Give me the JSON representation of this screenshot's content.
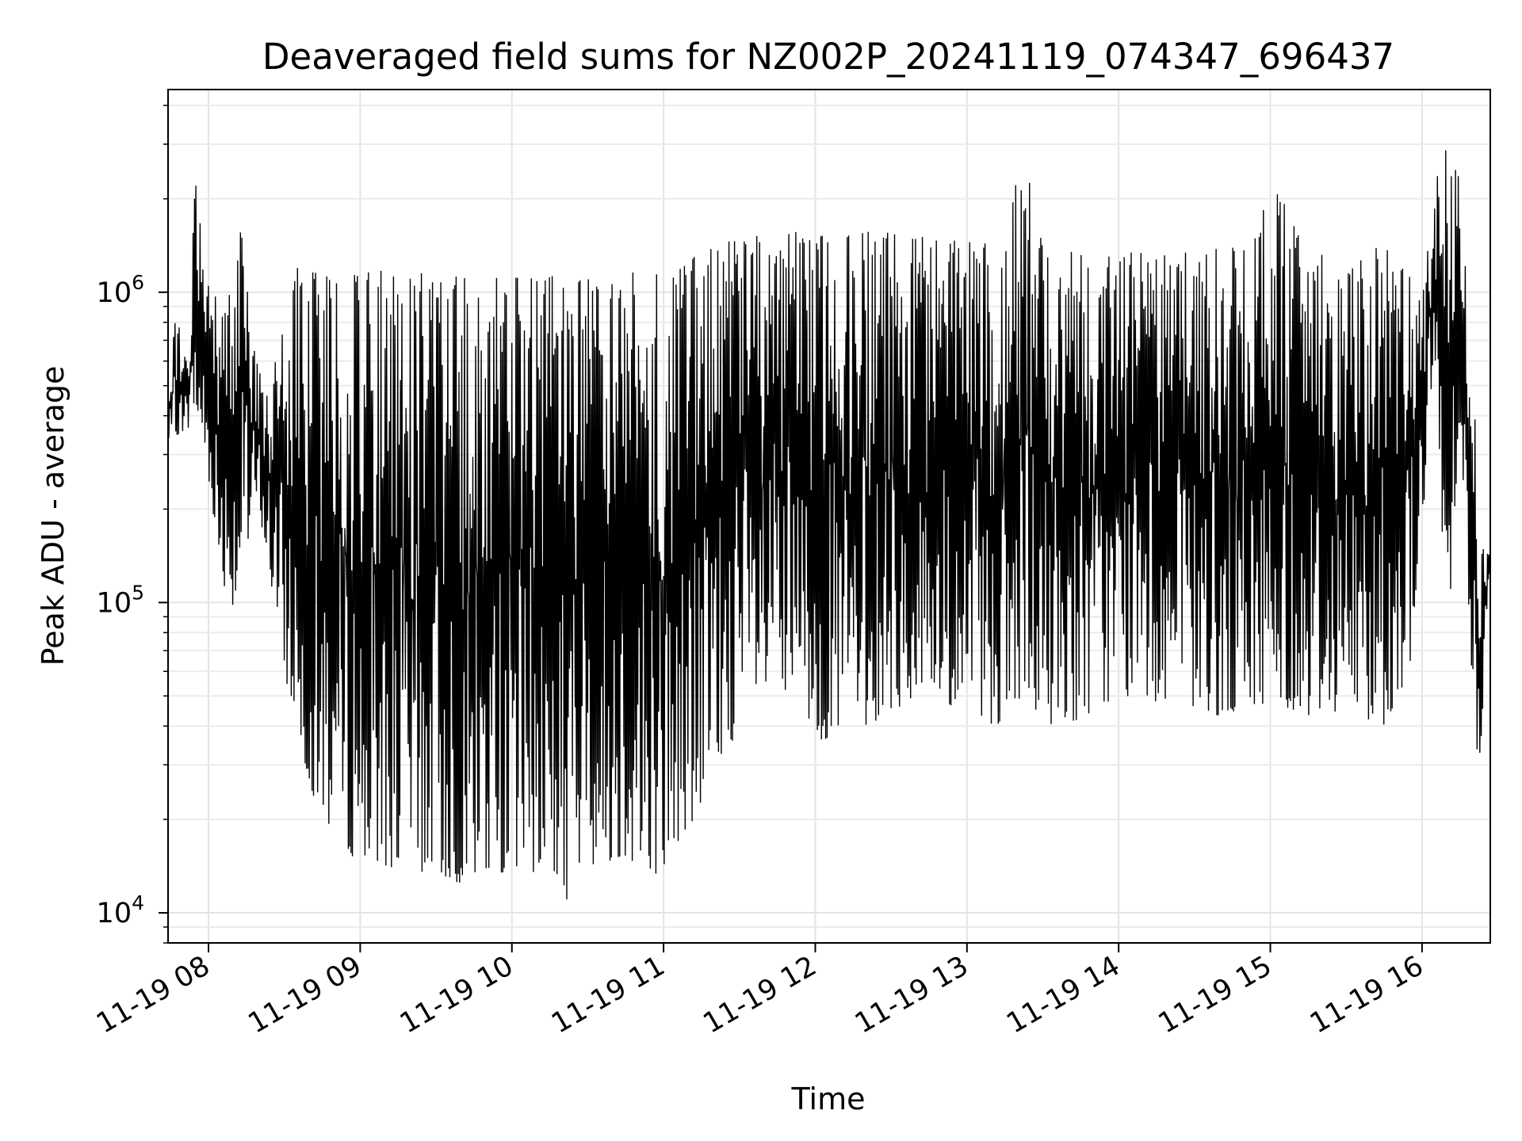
{
  "chart_data": {
    "type": "line",
    "title": "Deaveraged field sums for NZ002P_20241119_074347_696437",
    "xlabel": "Time",
    "ylabel": "Peak ADU - average",
    "y_scale": "log",
    "xlim": [
      "11-19 07:44",
      "11-19 16:27"
    ],
    "ylim": [
      8000,
      4500000
    ],
    "x_ticks": [
      "11-19 08",
      "11-19 09",
      "11-19 10",
      "11-19 11",
      "11-19 12",
      "11-19 13",
      "11-19 14",
      "11-19 15",
      "11-19 16"
    ],
    "y_ticks": [
      {
        "value": 10000,
        "base": "10",
        "exp": "4"
      },
      {
        "value": 100000,
        "base": "10",
        "exp": "5"
      },
      {
        "value": 1000000,
        "base": "10",
        "exp": "6"
      }
    ],
    "grid": true,
    "line_color": "#000000",
    "series": [
      {
        "name": "",
        "description_envelope": "upper and lower envelope of a dense oscillating line, values in ADU",
        "upper": [
          [
            "07:44",
            420000
          ],
          [
            "07:47",
            880000
          ],
          [
            "07:52",
            560000
          ],
          [
            "07:55",
            2800000
          ],
          [
            "07:58",
            1250000
          ],
          [
            "08:05",
            900000
          ],
          [
            "08:13",
            1600000
          ],
          [
            "08:22",
            450000
          ],
          [
            "08:31",
            850000
          ],
          [
            "08:35",
            1200000
          ],
          [
            "08:45",
            1180000
          ],
          [
            "09:00",
            1150000
          ],
          [
            "09:15",
            1200000
          ],
          [
            "09:30",
            1150000
          ],
          [
            "09:45",
            1100000
          ],
          [
            "10:00",
            1120000
          ],
          [
            "10:15",
            1130000
          ],
          [
            "10:30",
            1100000
          ],
          [
            "10:45",
            1150000
          ],
          [
            "11:00",
            1200000
          ],
          [
            "11:15",
            1350000
          ],
          [
            "11:30",
            1500000
          ],
          [
            "11:45",
            1600000
          ],
          [
            "12:00",
            1550000
          ],
          [
            "12:15",
            1600000
          ],
          [
            "12:30",
            1550000
          ],
          [
            "12:45",
            1500000
          ],
          [
            "13:00",
            1450000
          ],
          [
            "13:15",
            1450000
          ],
          [
            "13:22",
            2900000
          ],
          [
            "13:30",
            1400000
          ],
          [
            "13:45",
            1350000
          ],
          [
            "14:00",
            1350000
          ],
          [
            "14:15",
            1350000
          ],
          [
            "14:30",
            1350000
          ],
          [
            "14:45",
            1400000
          ],
          [
            "15:03",
            2100000
          ],
          [
            "15:15",
            1400000
          ],
          [
            "15:30",
            1400000
          ],
          [
            "15:45",
            1400000
          ],
          [
            "16:00",
            1100000
          ],
          [
            "16:06",
            3300000
          ],
          [
            "16:14",
            2600000
          ],
          [
            "16:18",
            1000000
          ],
          [
            "16:21",
            400000
          ],
          [
            "16:23",
            140000
          ],
          [
            "16:27",
            170000
          ]
        ],
        "lower": [
          [
            "07:44",
            330000
          ],
          [
            "07:55",
            380000
          ],
          [
            "08:00",
            250000
          ],
          [
            "08:05",
            120000
          ],
          [
            "08:10",
            95000
          ],
          [
            "08:20",
            200000
          ],
          [
            "08:30",
            60000
          ],
          [
            "08:37",
            30000
          ],
          [
            "08:45",
            20000
          ],
          [
            "08:55",
            16000
          ],
          [
            "09:00",
            14000
          ],
          [
            "09:15",
            14000
          ],
          [
            "09:30",
            13000
          ],
          [
            "09:45",
            12000
          ],
          [
            "10:00",
            14000
          ],
          [
            "10:15",
            13000
          ],
          [
            "10:20",
            10500
          ],
          [
            "10:30",
            14000
          ],
          [
            "10:45",
            15000
          ],
          [
            "11:00",
            13000
          ],
          [
            "11:15",
            22000
          ],
          [
            "11:30",
            40000
          ],
          [
            "11:45",
            50000
          ],
          [
            "12:00",
            36000
          ],
          [
            "12:15",
            37000
          ],
          [
            "12:30",
            45000
          ],
          [
            "12:45",
            48000
          ],
          [
            "13:00",
            42000
          ],
          [
            "13:15",
            40000
          ],
          [
            "13:30",
            40000
          ],
          [
            "13:45",
            42000
          ],
          [
            "14:00",
            50000
          ],
          [
            "14:15",
            48000
          ],
          [
            "14:30",
            45000
          ],
          [
            "14:45",
            42000
          ],
          [
            "15:00",
            48000
          ],
          [
            "15:15",
            43000
          ],
          [
            "15:30",
            45000
          ],
          [
            "15:45",
            40000
          ],
          [
            "15:55",
            60000
          ],
          [
            "16:05",
            500000
          ],
          [
            "16:10",
            70000
          ],
          [
            "16:15",
            400000
          ],
          [
            "16:22",
            21000
          ],
          [
            "16:27",
            130000
          ]
        ]
      }
    ]
  }
}
